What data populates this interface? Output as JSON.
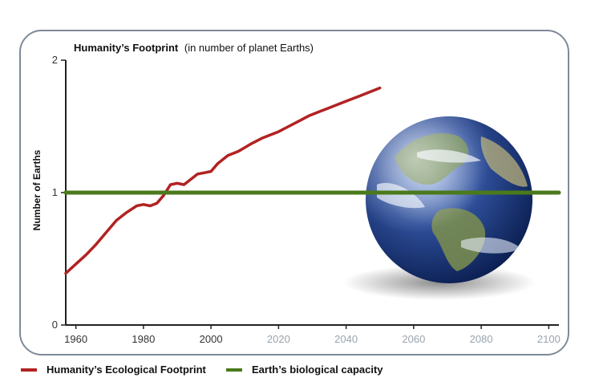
{
  "chart_data": {
    "type": "line",
    "title": "Humanity’s Footprint",
    "subtitle": "(in number of planet Earths)",
    "ylabel": "Number of Earths",
    "xlabel": "",
    "xlim": [
      1957,
      2103
    ],
    "ylim": [
      0,
      2
    ],
    "x_ticks": [
      1960,
      1980,
      2000,
      2020,
      2040,
      2060,
      2080,
      2100
    ],
    "y_ticks": [
      0,
      1,
      2
    ],
    "grid": false,
    "legend": "bottom",
    "series": [
      {
        "name": "Humanity’s Ecological Footprint",
        "color": "#b22222",
        "x": [
          1957,
          1960,
          1963,
          1966,
          1969,
          1972,
          1975,
          1978,
          1980,
          1982,
          1984,
          1986,
          1988,
          1990,
          1992,
          1994,
          1996,
          1998,
          2000,
          2002,
          2005,
          2008,
          2010,
          2012,
          2015,
          2018,
          2020,
          2023,
          2026,
          2029,
          2032,
          2035,
          2038,
          2041,
          2044,
          2047,
          2050
        ],
        "values": [
          0.39,
          0.46,
          0.53,
          0.61,
          0.7,
          0.79,
          0.85,
          0.9,
          0.91,
          0.9,
          0.92,
          0.98,
          1.06,
          1.07,
          1.06,
          1.1,
          1.14,
          1.15,
          1.16,
          1.22,
          1.28,
          1.31,
          1.34,
          1.37,
          1.41,
          1.44,
          1.46,
          1.5,
          1.54,
          1.58,
          1.61,
          1.64,
          1.67,
          1.7,
          1.73,
          1.76,
          1.79
        ]
      },
      {
        "name": "Earth’s biological capacity",
        "color": "#4a7a1c",
        "x": [
          1957,
          2103
        ],
        "values": [
          1.0,
          1.0
        ]
      }
    ]
  },
  "globe": {
    "icon": "earth-globe-icon"
  }
}
